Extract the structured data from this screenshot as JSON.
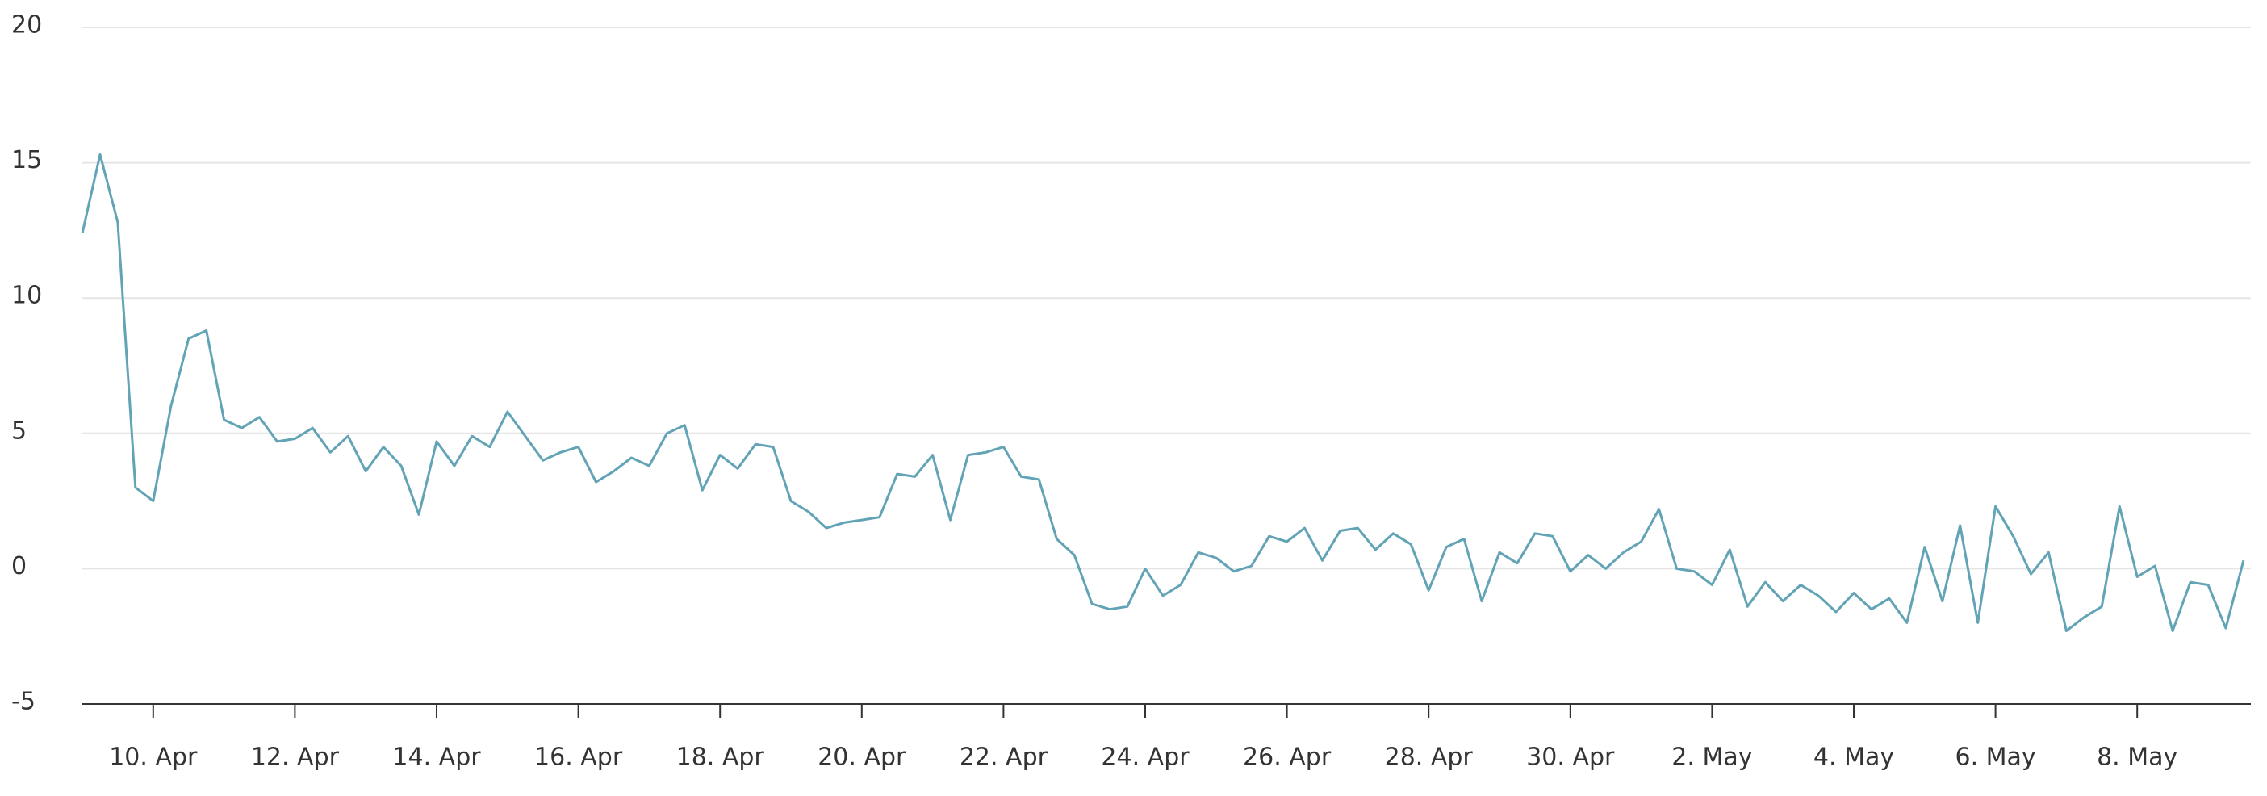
{
  "chart_data": {
    "type": "line",
    "categories": [
      null,
      null,
      null,
      null,
      "10. Apr",
      null,
      null,
      null,
      null,
      null,
      null,
      null,
      "12. Apr",
      null,
      null,
      null,
      null,
      null,
      null,
      null,
      "14. Apr",
      null,
      null,
      null,
      null,
      null,
      null,
      null,
      "16. Apr",
      null,
      null,
      null,
      null,
      null,
      null,
      null,
      "18. Apr",
      null,
      null,
      null,
      null,
      null,
      null,
      null,
      "20. Apr",
      null,
      null,
      null,
      null,
      null,
      null,
      null,
      "22. Apr",
      null,
      null,
      null,
      null,
      null,
      null,
      null,
      "24. Apr",
      null,
      null,
      null,
      null,
      null,
      null,
      null,
      "26. Apr",
      null,
      null,
      null,
      null,
      null,
      null,
      null,
      "28. Apr",
      null,
      null,
      null,
      null,
      null,
      null,
      null,
      "30. Apr",
      null,
      null,
      null,
      null,
      null,
      null,
      null,
      "2. May",
      null,
      null,
      null,
      null,
      null,
      null,
      null,
      "4. May",
      null,
      null,
      null,
      null,
      null,
      null,
      null,
      "6. May",
      null,
      null,
      null,
      null,
      null,
      null,
      null,
      "8. May",
      null,
      null,
      null,
      null,
      null,
      null
    ],
    "values": [
      12.4,
      15.3,
      12.8,
      3.0,
      2.5,
      6.0,
      8.5,
      8.8,
      5.5,
      5.2,
      5.6,
      4.7,
      4.8,
      5.2,
      4.3,
      4.9,
      3.6,
      4.5,
      3.8,
      2.0,
      4.7,
      3.8,
      4.9,
      4.5,
      5.8,
      4.9,
      4.0,
      4.3,
      4.5,
      3.2,
      3.6,
      4.1,
      3.8,
      5.0,
      5.3,
      2.9,
      4.2,
      3.7,
      4.6,
      4.5,
      2.5,
      2.1,
      1.5,
      1.7,
      1.8,
      1.9,
      3.5,
      3.4,
      4.2,
      1.8,
      4.2,
      4.3,
      4.5,
      3.4,
      3.3,
      1.1,
      0.5,
      -1.3,
      -1.5,
      -1.4,
      0.0,
      -1.0,
      -0.6,
      0.6,
      0.4,
      -0.1,
      0.1,
      1.2,
      1.0,
      1.5,
      0.3,
      1.4,
      1.5,
      0.7,
      1.3,
      0.9,
      -0.8,
      0.8,
      1.1,
      -1.2,
      0.6,
      0.2,
      1.3,
      1.2,
      -0.1,
      0.5,
      0.0,
      0.6,
      1.0,
      2.2,
      0.0,
      -0.1,
      -0.6,
      0.7,
      -1.4,
      -0.5,
      -1.2,
      -0.6,
      -1.0,
      -1.6,
      -0.9,
      -1.5,
      -1.1,
      -2.0,
      0.8,
      -1.2,
      1.6,
      -2.0,
      2.3,
      1.2,
      -0.2,
      0.6,
      -2.3,
      -1.8,
      -1.4,
      2.3,
      -0.3,
      0.1,
      -2.3,
      -0.5,
      -0.6,
      -2.2,
      0.3
    ],
    "color": "#62a3b6",
    "ylim": [
      -5,
      20
    ],
    "yticks": [
      -5,
      0,
      5,
      10,
      15,
      20
    ],
    "grid": true
  }
}
